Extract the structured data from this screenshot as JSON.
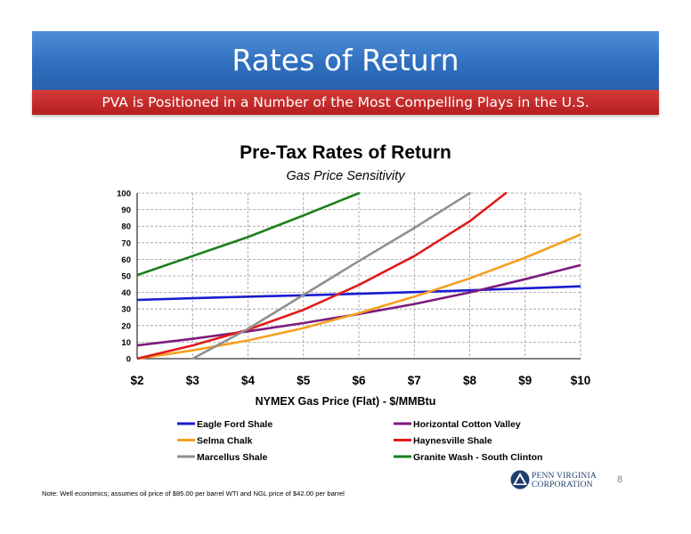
{
  "slide": {
    "title": "Rates of Return",
    "subtitle": "PVA is Positioned in a Number of the Most Compelling Plays in the U.S.",
    "footnote": "Note: Well economics; assumes oil price of $85.00 per barrel WTI and NGL price of $42.00 per barrel",
    "page_number": "8",
    "logo": {
      "line1": "PENN VIRGINIA",
      "line2": "CORPORATION",
      "icon": "triangle-logo-icon"
    }
  },
  "chart_data": {
    "type": "line",
    "title": "Pre-Tax Rates of Return",
    "subtitle": "Gas Price Sensitivity",
    "xlabel": "NYMEX Gas Price (Flat) - $/MMBtu",
    "ylabel": "",
    "x_ticks": [
      {
        "value": 2,
        "label": "$2"
      },
      {
        "value": 3,
        "label": "$3"
      },
      {
        "value": 4,
        "label": "$4"
      },
      {
        "value": 5,
        "label": "$5"
      },
      {
        "value": 6,
        "label": "$6"
      },
      {
        "value": 7,
        "label": "$7"
      },
      {
        "value": 8,
        "label": "$8"
      },
      {
        "value": 9,
        "label": "$9"
      },
      {
        "value": 10,
        "label": "$10"
      }
    ],
    "y_ticks": [
      0,
      10,
      20,
      30,
      40,
      50,
      60,
      70,
      80,
      90,
      100
    ],
    "xlim": [
      2,
      10
    ],
    "ylim": [
      0,
      100
    ],
    "grid": true,
    "legend_position": "bottom",
    "series": [
      {
        "name": "Eagle Ford Shale",
        "color": "#1b1bd0",
        "points": [
          [
            2,
            35.5
          ],
          [
            3,
            36.5
          ],
          [
            4,
            37.5
          ],
          [
            5,
            38.3
          ],
          [
            6,
            39.2
          ],
          [
            7,
            40.2
          ],
          [
            8,
            41.3
          ],
          [
            9,
            42.5
          ],
          [
            10,
            43.7
          ]
        ]
      },
      {
        "name": "Horizontal Cotton Valley",
        "color": "#7d1a7d",
        "points": [
          [
            2,
            8
          ],
          [
            3,
            12
          ],
          [
            4,
            16.5
          ],
          [
            5,
            21.5
          ],
          [
            6,
            27
          ],
          [
            7,
            33
          ],
          [
            8,
            40
          ],
          [
            9,
            48
          ],
          [
            10,
            56.5
          ]
        ]
      },
      {
        "name": "Selma Chalk",
        "color": "#f5a020",
        "points": [
          [
            2,
            0
          ],
          [
            3,
            5
          ],
          [
            4,
            11
          ],
          [
            5,
            18.5
          ],
          [
            6,
            27.5
          ],
          [
            7,
            37.5
          ],
          [
            8,
            48.5
          ],
          [
            9,
            61
          ],
          [
            10,
            75
          ]
        ]
      },
      {
        "name": "Haynesville Shale",
        "color": "#e01b1b",
        "points": [
          [
            2,
            0
          ],
          [
            3,
            8
          ],
          [
            4,
            17.5
          ],
          [
            5,
            29.5
          ],
          [
            6,
            44.5
          ],
          [
            7,
            62
          ],
          [
            8,
            83
          ],
          [
            8.65,
            100
          ]
        ]
      },
      {
        "name": "Marcellus Shale",
        "color": "#8f8f8f",
        "points": [
          [
            3,
            0
          ],
          [
            4,
            18
          ],
          [
            5,
            38.5
          ],
          [
            6,
            59
          ],
          [
            7,
            79
          ],
          [
            8,
            100
          ]
        ]
      },
      {
        "name": "Granite Wash - South Clinton",
        "color": "#1a7d1a",
        "points": [
          [
            2,
            50.5
          ],
          [
            3,
            62
          ],
          [
            4,
            73.5
          ],
          [
            5,
            86.5
          ],
          [
            6,
            100
          ]
        ]
      }
    ]
  }
}
